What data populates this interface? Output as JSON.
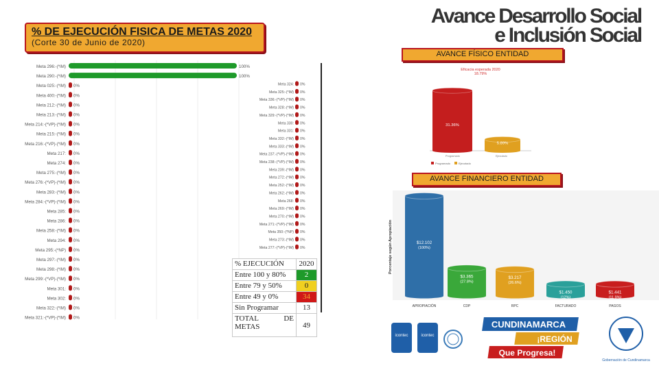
{
  "header": {
    "title": "%  DE EJECUCIÓN FISICA DE METAS 2020",
    "subtitle": "(Corte 30 de Junio de 2020)"
  },
  "brand": {
    "line1": "Avance Desarrollo Social",
    "line2": "e Inclusión Social"
  },
  "labels": {
    "fisico": "AVANCE FÍSICO ENTIDAD",
    "financiero": "AVANCE FINANCIERO ENTIDAD"
  },
  "table": {
    "header_label": "% EJECUCIÓN",
    "header_year": "2020",
    "rows": [
      {
        "label": "Entre 100 y 80%",
        "value": "2"
      },
      {
        "label": "Entre 79 y 50%",
        "value": "0"
      },
      {
        "label": "Entre 49 y 0%",
        "value": "34"
      },
      {
        "label": "Sin Programar",
        "value": "13"
      }
    ],
    "total_label_1": "TOTAL",
    "total_label_2": "DE",
    "total_label_3": "METAS",
    "total_value": "49"
  },
  "logos": {
    "dept": "CUNDINAMARCA",
    "region": "¡REGIÓN",
    "slogan": "Que Progresa!",
    "icontec": "icontec",
    "gov": "Gobernación de Cundinamarca"
  },
  "colors": {
    "orange_box": "#f0a830",
    "red_border": "#b8141e",
    "green_bar": "#1e9a2a",
    "red_pill": "#b01818"
  },
  "chart_data": [
    {
      "type": "bar",
      "orientation": "horizontal",
      "categories": [
        "Meta 296:-(*IM)",
        "Meta 290:-(*IM)",
        "Meta 025:-(*IM)",
        "Meta 400:-(*IM)",
        "Meta 212:-(*IM)",
        "Meta 213:-(*IM)",
        "Meta 214:-(*VP)-(*IM)",
        "Meta 215:-(*IM)",
        "Meta 216:-(*VP)-(*IM)",
        "Meta 217:",
        "Meta 274:",
        "Meta 275:-(*IM)",
        "Meta 276:-(*VP)-(*IM)",
        "Meta 283:-(*IM)",
        "Meta 284:-(*VP)-(*IM)",
        "Meta 285:",
        "Meta 286:",
        "Meta 258:-(*IM)",
        "Meta 294:",
        "Meta 295:-(*NP)",
        "Meta 297:-(*IM)",
        "Meta 298:-(*IM)",
        "Meta 299:-(*VP)-(*IM)",
        "Meta 301:",
        "Meta 302:",
        "Meta 322:-(*IM)",
        "Meta 321:-(*VP)-(*IM)"
      ],
      "values": [
        100,
        100,
        0,
        0,
        0,
        0,
        0,
        0,
        0,
        0,
        0,
        0,
        0,
        0,
        0,
        0,
        0,
        0,
        0,
        0,
        0,
        0,
        0,
        0,
        0,
        0,
        0
      ],
      "value_labels": [
        "100%",
        "100%",
        "0%",
        "0%",
        "0%",
        "0%",
        "0%",
        "0%",
        "0%",
        "0%",
        "0%",
        "0%",
        "0%",
        "0%",
        "0%",
        "0%",
        "0%",
        "0%",
        "0%",
        "0%",
        "0%",
        "0%",
        "0%",
        "0%",
        "0%",
        "0%",
        "0%"
      ],
      "xlim": [
        0,
        100
      ]
    },
    {
      "type": "bar",
      "orientation": "horizontal",
      "categories": [
        "Meta 324:",
        "Meta 325:-(*IM)",
        "Meta 336:-(*VP)-(*IM)",
        "Meta 328:-(*IM)",
        "Meta 329:-(*VP)-(*IM)",
        "Meta 330:",
        "Meta 331:",
        "Meta 332:-(*IM)",
        "Meta 333:-(*IM)",
        "Meta 237:-(*VP)-(*IM)",
        "Meta 238:-(*VP)-(*IM)",
        "Meta 239:-(*IM)",
        "Meta 272:-(*IM)",
        "Meta 252:-(*IM)",
        "Meta 262:-(*IM)",
        "Meta 268:",
        "Meta 269:-(*IM)",
        "Meta 270:-(*IM)",
        "Meta 271:-(*VP)-(*IM)",
        "Meta 350:-(*NP)",
        "Meta 273:-(*IM)",
        "Meta 277:-(*VP)-(*IM)"
      ],
      "values": [
        0,
        0,
        0,
        0,
        0,
        0,
        0,
        0,
        0,
        0,
        0,
        0,
        0,
        0,
        0,
        0,
        0,
        0,
        0,
        0,
        0,
        0
      ],
      "value_labels": [
        "0%",
        "0%",
        "0%",
        "0%",
        "0%",
        "0%",
        "0%",
        "0%",
        "0%",
        "0%",
        "0%",
        "0%",
        "0%",
        "0%",
        "0%",
        "0%",
        "0%",
        "0%",
        "0%",
        "0%",
        "0%",
        "0%"
      ],
      "xlim": [
        0,
        100
      ]
    },
    {
      "type": "bar",
      "title": "Eficacia esperada 2020",
      "subtitle": "18.79%",
      "categories": [
        "Programado",
        "Ejecutado"
      ],
      "values": [
        31.36,
        5.89
      ],
      "value_labels": [
        "31.36%",
        "5.89%"
      ],
      "legend": [
        "Programado",
        "Ejecutado"
      ],
      "colors": [
        "#c41e1e",
        "#e0a020"
      ],
      "ylim": [
        0,
        35
      ]
    },
    {
      "type": "bar",
      "ylabel": "Porcentaje según Apropiación",
      "categories": [
        "APROPIACIÓN",
        "CDP",
        "RPC",
        "FACTURADO",
        "PAGOS"
      ],
      "values": [
        100,
        27.8,
        26.6,
        12,
        11.9
      ],
      "value_labels": [
        "$12.102",
        "$3.365",
        "$3.217",
        "$1.450",
        "$1.441"
      ],
      "pct_labels": [
        "(100%)",
        "(27.8%)",
        "(26.6%)",
        "(12%)",
        "(11.9%)"
      ],
      "colors": [
        "#2f6fa8",
        "#3aa83a",
        "#e0a020",
        "#2aa09a",
        "#c81e1e"
      ],
      "ylim": [
        0,
        100
      ]
    }
  ]
}
